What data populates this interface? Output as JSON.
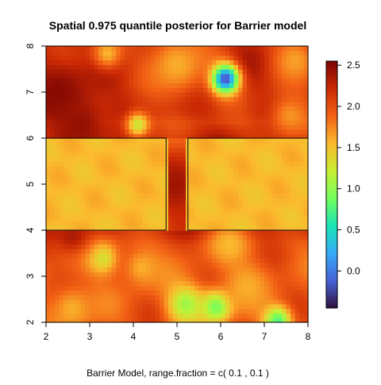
{
  "chart_data": {
    "type": "heatmap",
    "title": "Spatial 0.975 quantile posterior for Barrier model",
    "xlabel": "Barrier Model, range.fraction = c( 0.1 ,  0.1 )",
    "ylabel": "",
    "xlim": [
      2,
      8
    ],
    "ylim": [
      2,
      8
    ],
    "x_ticks": [
      "2",
      "3",
      "4",
      "5",
      "6",
      "7",
      "8"
    ],
    "y_ticks": [
      "2",
      "3",
      "4",
      "5",
      "6",
      "7",
      "8"
    ],
    "colorbar": {
      "min": -0.45,
      "max": 2.55,
      "ticks": [
        "0.0",
        "0.5",
        "1.0",
        "1.5",
        "2.0",
        "2.5"
      ],
      "tick_values": [
        0.0,
        0.5,
        1.0,
        1.5,
        2.0,
        2.5
      ],
      "palette": [
        "#30123b",
        "#4662d7",
        "#36aaf9",
        "#1ae4b6",
        "#72fe5e",
        "#c7ef34",
        "#fabb2e",
        "#f36315",
        "#cb2a04",
        "#7a0403"
      ]
    },
    "base_value": 1.95,
    "upper_region_value": 2.2,
    "barrier_fill_value": 1.55,
    "barriers": [
      {
        "x": [
          2.0,
          4.75
        ],
        "y": [
          4.0,
          6.0
        ]
      },
      {
        "x": [
          5.25,
          8.0
        ],
        "y": [
          4.0,
          6.0
        ]
      }
    ],
    "features": [
      {
        "x": 6.1,
        "y": 7.3,
        "value": -0.35,
        "spread": 0.22
      },
      {
        "x": 4.1,
        "y": 6.3,
        "value": 1.2,
        "spread": 0.2
      },
      {
        "x": 3.4,
        "y": 7.85,
        "value": 1.55,
        "spread": 0.25
      },
      {
        "x": 5.0,
        "y": 7.6,
        "value": 1.6,
        "spread": 0.5
      },
      {
        "x": 2.3,
        "y": 7.0,
        "value": 2.5,
        "spread": 0.5
      },
      {
        "x": 2.8,
        "y": 6.3,
        "value": 2.45,
        "spread": 0.45
      },
      {
        "x": 5.0,
        "y": 5.0,
        "value": 2.4,
        "spread": 0.55
      },
      {
        "x": 3.3,
        "y": 3.4,
        "value": 1.3,
        "spread": 0.25
      },
      {
        "x": 4.2,
        "y": 3.2,
        "value": 1.6,
        "spread": 0.3
      },
      {
        "x": 5.9,
        "y": 2.35,
        "value": 0.85,
        "spread": 0.25
      },
      {
        "x": 5.2,
        "y": 2.4,
        "value": 1.05,
        "spread": 0.3
      },
      {
        "x": 7.3,
        "y": 2.05,
        "value": 0.75,
        "spread": 0.22
      },
      {
        "x": 6.6,
        "y": 2.8,
        "value": 1.6,
        "spread": 0.35
      },
      {
        "x": 2.6,
        "y": 2.3,
        "value": 1.6,
        "spread": 0.35
      },
      {
        "x": 6.2,
        "y": 3.7,
        "value": 1.55,
        "spread": 0.3
      },
      {
        "x": 7.7,
        "y": 7.7,
        "value": 1.65,
        "spread": 0.35
      },
      {
        "x": 7.6,
        "y": 6.5,
        "value": 1.7,
        "spread": 0.35
      },
      {
        "x": 2.6,
        "y": 3.9,
        "value": 2.35,
        "spread": 0.3
      }
    ]
  }
}
